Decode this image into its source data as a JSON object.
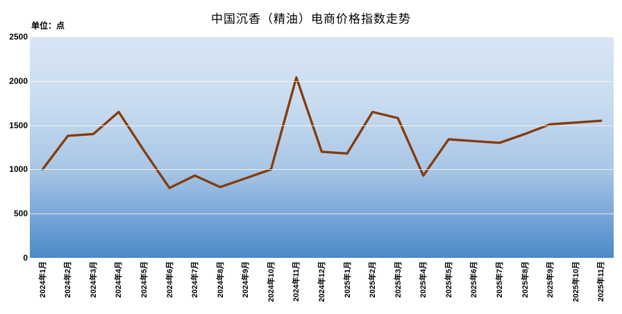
{
  "title": "中国沉香（精油）电商价格指数走势",
  "unit_label": "单位：点",
  "colors": {
    "line": "#843c0c",
    "plot_bg_top": "#d8e5f4",
    "plot_bg_bottom": "#4a88c8",
    "gridline": "rgba(250,245,233,0.85)",
    "page_bg": "#ffffff",
    "text": "#000000"
  },
  "chart_data": {
    "type": "line",
    "title": "中国沉香（精油）电商价格指数走势",
    "ylabel": "单位：点",
    "categories": [
      "2024年1月",
      "2024年2月",
      "2024年3月",
      "2024年4月",
      "2024年5月",
      "2024年6月",
      "2024年7月",
      "2024年8月",
      "2024年9月",
      "2024年10月",
      "2024年11月",
      "2024年12月",
      "2025年1月",
      "2025年2月",
      "2025年3月",
      "2025年4月",
      "2025年5月",
      "2025年6月",
      "2025年7月",
      "2025年8月",
      "2025年9月",
      "2025年10月",
      "2025年11月"
    ],
    "values": [
      1000,
      1380,
      1400,
      1650,
      1210,
      790,
      930,
      800,
      900,
      1000,
      2040,
      1200,
      1180,
      1650,
      1580,
      930,
      1340,
      1320,
      1300,
      1400,
      1510,
      1530,
      1550
    ],
    "ylim": [
      0,
      2500
    ],
    "yticks": [
      0,
      500,
      1000,
      1500,
      2000,
      2500
    ],
    "grid": true,
    "legend_position": "none"
  }
}
